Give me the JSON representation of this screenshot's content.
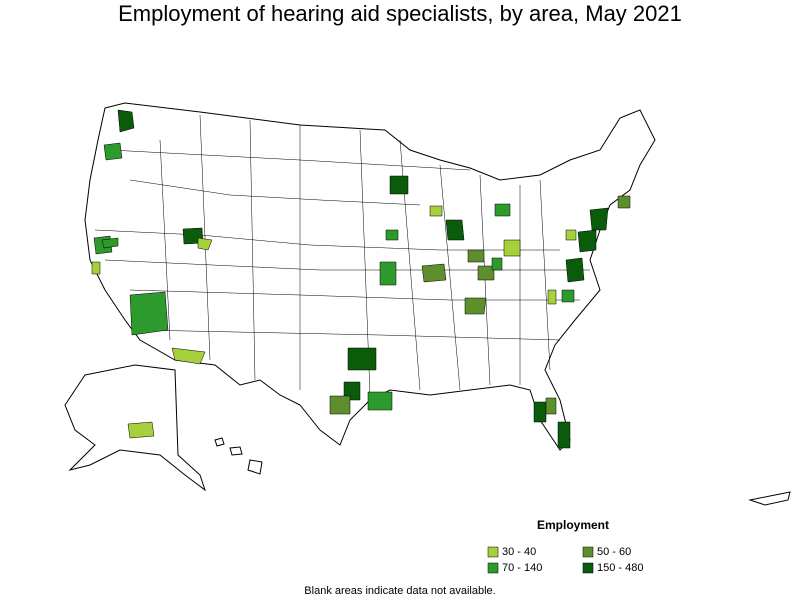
{
  "title": "Employment of hearing aid specialists, by area, May 2021",
  "legend": {
    "title": "Employment",
    "items": [
      {
        "label": "30 - 40",
        "color": "#a6d03c"
      },
      {
        "label": "50 - 60",
        "color": "#5e8f2c"
      },
      {
        "label": "70 - 140",
        "color": "#2c9a2c"
      },
      {
        "label": "150 - 480",
        "color": "#0a5c0a"
      }
    ]
  },
  "note": "Blank areas indicate data not available."
}
